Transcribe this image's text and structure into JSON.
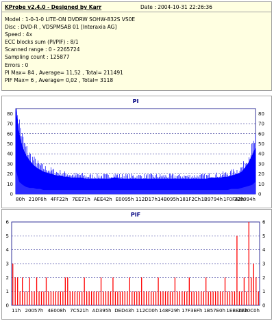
{
  "header": {
    "title": "KProbe v2.4.0 - Designed by Karr",
    "date": "Date : 2004-10-31 22:26:36"
  },
  "info_lines": [
    "Model : 1-0-1-0 LITE-ON DVDRW SOHW-832S  VS0E",
    "Disc : DVD-R ,  VDSPMSAB 01 [Interaxia AG]",
    "Speed : 4x",
    "ECC blocks sum (PI/PIF) : 8/1",
    "Scanned range : 0 - 2265724",
    "Sampling count : 125877",
    "Errors : 0",
    "PI Max= 84 ,  Average= 11,52 ,  Total= 211491",
    "PIF Max= 6 ,  Average= 0,02 ,  Total= 3118"
  ],
  "colors": {
    "series": "#0000ff",
    "pif_series": "#ff0000",
    "grid": "#000080",
    "background": "#ffffff",
    "info_bg": "#ffffe1"
  },
  "chart_data": [
    {
      "type": "area",
      "title": "PI",
      "xlabel": "",
      "ylabel": "",
      "x_tick_labels": [
        "80h",
        "210F6h",
        "4FF22h",
        "7EE71h",
        "AEE42h",
        "E0095h",
        "112D17h",
        "14B095h",
        "181F2Ch",
        "1B9794h",
        "1F0F42h",
        "228994h"
      ],
      "ylim": [
        0,
        85
      ],
      "y_ticks": [
        0,
        10,
        20,
        30,
        40,
        50,
        60,
        70,
        80
      ],
      "grid": true,
      "series": [
        {
          "values": [
            84,
            60,
            46,
            38,
            33,
            29,
            26,
            24,
            22,
            21,
            20,
            19,
            18,
            18,
            17,
            17,
            16,
            16,
            16,
            16,
            15,
            15,
            15,
            15,
            15,
            15,
            15,
            15,
            16,
            16,
            15,
            15,
            15,
            15,
            15,
            15,
            15,
            15,
            15,
            15,
            15,
            15,
            15,
            15,
            15,
            15,
            15,
            15,
            15,
            15,
            15,
            15,
            15,
            15,
            15,
            15,
            16,
            16,
            16,
            16,
            17,
            17,
            18,
            19,
            20,
            22,
            26,
            31,
            38,
            46
          ]
        }
      ],
      "background_values": [
        24,
        12,
        9,
        7,
        6,
        6,
        5,
        5,
        4,
        4,
        4,
        4,
        4,
        4,
        4,
        4,
        4,
        4,
        4,
        4,
        4,
        4,
        4,
        4,
        4,
        4,
        4,
        4,
        4,
        4,
        4,
        4,
        4,
        4,
        4,
        4,
        4,
        4,
        4,
        4,
        4,
        4,
        4,
        4,
        4,
        4,
        4,
        4,
        4,
        4,
        4,
        4,
        4,
        4,
        4,
        4,
        4,
        4,
        4,
        4,
        4,
        4,
        5,
        5,
        5,
        6,
        7,
        8,
        9,
        12
      ]
    },
    {
      "type": "bar",
      "title": "PIF",
      "xlabel": "",
      "ylabel": "",
      "x_tick_labels": [
        "11h",
        "20057h",
        "4E008h",
        "7C521h",
        "AD395h",
        "DED43h",
        "112C00h",
        "148F29h",
        "17F3EFh",
        "1B57E0h",
        "1EBE0Eh",
        "2220C0h"
      ],
      "ylim": [
        0,
        6
      ],
      "y_ticks": [
        0,
        1,
        2,
        3,
        4,
        5,
        6
      ],
      "grid": true,
      "series": [
        {
          "values": [
            3,
            2,
            2,
            1,
            2,
            1,
            1,
            2,
            1,
            1,
            2,
            1,
            1,
            1,
            2,
            1,
            1,
            1,
            1,
            1,
            1,
            1,
            2,
            2,
            1,
            1,
            1,
            1,
            1,
            1,
            2,
            1,
            1,
            1,
            1,
            1,
            1,
            2,
            1,
            1,
            1,
            1,
            2,
            1,
            1,
            1,
            1,
            1,
            1,
            2,
            1,
            1,
            1,
            1,
            2,
            1,
            1,
            1,
            1,
            1,
            1,
            2,
            1,
            1,
            1,
            1,
            1,
            1,
            2,
            1,
            1,
            1,
            1,
            1,
            2,
            1,
            1,
            1,
            1,
            1,
            1,
            2,
            1,
            1,
            1,
            1,
            1,
            1,
            1,
            2,
            1,
            1,
            1,
            1,
            5,
            1,
            1,
            2,
            1,
            6,
            2,
            3,
            2,
            1
          ]
        }
      ]
    }
  ]
}
